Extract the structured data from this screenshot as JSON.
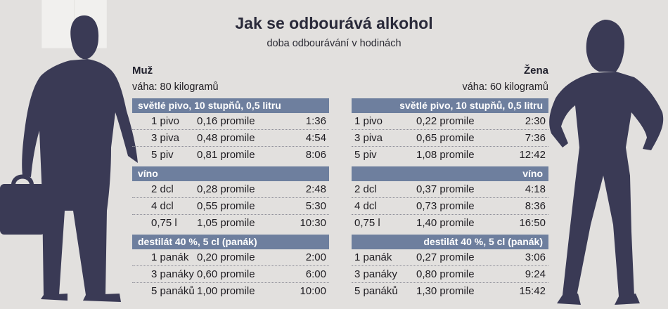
{
  "title": "Jak se odbourává alkohol",
  "subtitle": "doba odbourávání v hodinách",
  "colors": {
    "section_header": "#6e7f9e",
    "silhouette": "#3a3a55",
    "background": "#e2e0de"
  },
  "men": {
    "label": "Muž",
    "weight": "váha: 80 kilogramů",
    "sections": [
      {
        "header": "světlé pivo, 10 stupňů, 0,5 litru",
        "rows": [
          {
            "amount": "1 pivo",
            "promile": "0,16 promile",
            "time": "1:36"
          },
          {
            "amount": "3 piva",
            "promile": "0,48 promile",
            "time": "4:54"
          },
          {
            "amount": "5 piv",
            "promile": "0,81 promile",
            "time": "8:06"
          }
        ]
      },
      {
        "header": "víno",
        "rows": [
          {
            "amount": "2 dcl",
            "promile": "0,28 promile",
            "time": "2:48"
          },
          {
            "amount": "4 dcl",
            "promile": "0,55 promile",
            "time": "5:30"
          },
          {
            "amount": "0,75 l",
            "promile": "1,05 promile",
            "time": "10:30"
          }
        ]
      },
      {
        "header": "destilát 40 %, 5 cl (panák)",
        "rows": [
          {
            "amount": "1 panák",
            "promile": "0,20 promile",
            "time": "2:00"
          },
          {
            "amount": "3 panáky",
            "promile": "0,60 promile",
            "time": "6:00"
          },
          {
            "amount": "5 panáků",
            "promile": "1,00 promile",
            "time": "10:00"
          }
        ]
      }
    ]
  },
  "women": {
    "label": "Žena",
    "weight": "váha: 60 kilogramů",
    "sections": [
      {
        "header": "světlé pivo, 10 stupňů, 0,5 litru",
        "rows": [
          {
            "amount": "1 pivo",
            "promile": "0,22 promile",
            "time": "2:30"
          },
          {
            "amount": "3 piva",
            "promile": "0,65 promile",
            "time": "7:36"
          },
          {
            "amount": "5 piv",
            "promile": "1,08 promile",
            "time": "12:42"
          }
        ]
      },
      {
        "header": "víno",
        "rows": [
          {
            "amount": "2 dcl",
            "promile": "0,37 promile",
            "time": "4:18"
          },
          {
            "amount": "4 dcl",
            "promile": "0,73 promile",
            "time": "8:36"
          },
          {
            "amount": "0,75 l",
            "promile": "1,40 promile",
            "time": "16:50"
          }
        ]
      },
      {
        "header": "destilát 40 %, 5 cl (panák)",
        "rows": [
          {
            "amount": "1 panák",
            "promile": "0,27 promile",
            "time": "3:06"
          },
          {
            "amount": "3 panáky",
            "promile": "0,80 promile",
            "time": "9:24"
          },
          {
            "amount": "5 panáků",
            "promile": "1,30 promile",
            "time": "15:42"
          }
        ]
      }
    ]
  }
}
